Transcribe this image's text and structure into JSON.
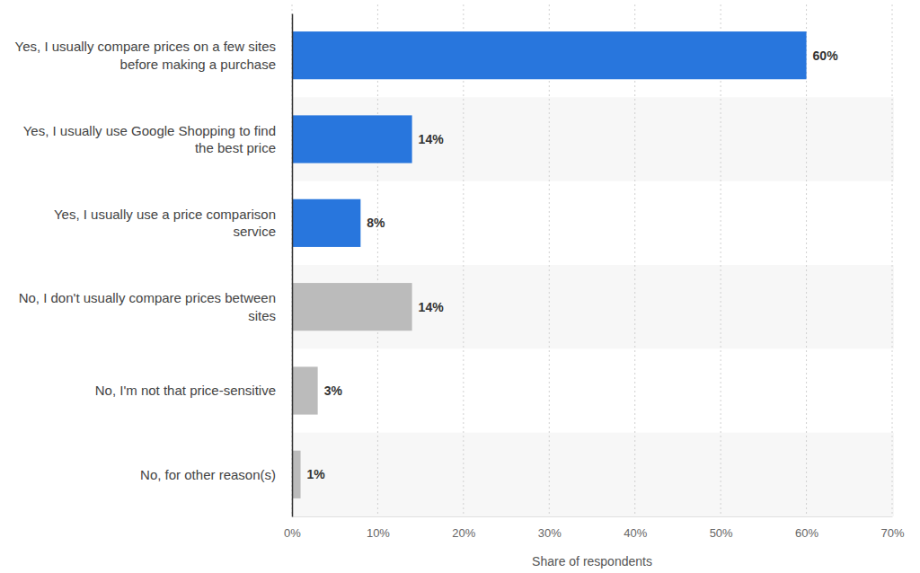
{
  "chart_data": {
    "type": "bar",
    "orientation": "horizontal",
    "categories": [
      "Yes, I usually compare prices on a few sites before making a purchase",
      "Yes, I usually use Google Shopping to find the best price",
      "Yes, I usually use a price comparison service",
      "No, I don't usually compare prices between sites",
      "No, I'm not that price-sensitive",
      "No, for other reason(s)"
    ],
    "values": [
      60,
      14,
      8,
      14,
      3,
      1
    ],
    "value_labels": [
      "60%",
      "14%",
      "8%",
      "14%",
      "3%",
      "1%"
    ],
    "colors": [
      "#2876dd",
      "#2876dd",
      "#2876dd",
      "#bbbbbb",
      "#bbbbbb",
      "#bbbbbb"
    ],
    "xlim": [
      0,
      70
    ],
    "xticks": [
      {
        "value": 0,
        "label": "0%"
      },
      {
        "value": 10,
        "label": "10%"
      },
      {
        "value": 20,
        "label": "20%"
      },
      {
        "value": 30,
        "label": "30%"
      },
      {
        "value": 40,
        "label": "40%"
      },
      {
        "value": 50,
        "label": "50%"
      },
      {
        "value": 60,
        "label": "60%"
      },
      {
        "value": 70,
        "label": "70%"
      }
    ],
    "xlabel": "Share of respondents",
    "grid": true,
    "data_labels": true
  }
}
